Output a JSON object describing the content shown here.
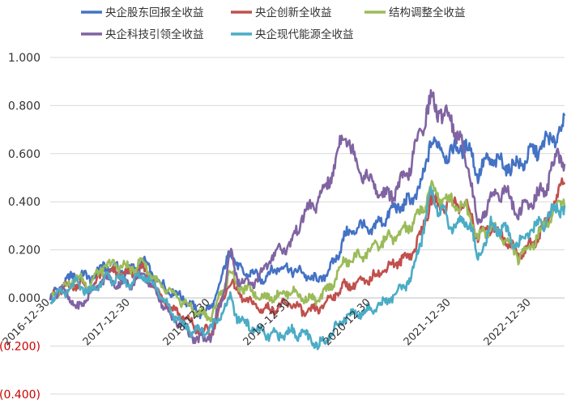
{
  "chart_data": {
    "type": "line",
    "grid": true,
    "legend_position": "top",
    "ylim": [
      -0.4,
      1.0
    ],
    "y_ticks": [
      {
        "value": 1.0,
        "label": "1.000"
      },
      {
        "value": 0.8,
        "label": "0.800"
      },
      {
        "value": 0.6,
        "label": "0.600"
      },
      {
        "value": 0.4,
        "label": "0.400"
      },
      {
        "value": 0.2,
        "label": "0.200"
      },
      {
        "value": 0.0,
        "label": "0.000"
      },
      {
        "value": -0.2,
        "label": "(0.200)"
      },
      {
        "value": -0.4,
        "label": "(0.400)"
      }
    ],
    "x_ticks": [
      "2016-12-30",
      "2017-12-30",
      "2018-12-30",
      "2019-12-30",
      "2020-12-30",
      "2021-12-30",
      "2022-12-30"
    ],
    "x_range": [
      "2016-12-30",
      "2023-05-31"
    ],
    "series": [
      {
        "name": "央企股东回报全收益",
        "color": "#4472C4",
        "points": [
          [
            "2016-12-30",
            0.0
          ],
          [
            "2017-02-28",
            0.06
          ],
          [
            "2017-04-30",
            0.1
          ],
          [
            "2017-06-30",
            0.08
          ],
          [
            "2017-08-31",
            0.13
          ],
          [
            "2017-10-31",
            0.12
          ],
          [
            "2017-12-30",
            0.11
          ],
          [
            "2018-02-28",
            0.15
          ],
          [
            "2018-04-30",
            0.07
          ],
          [
            "2018-06-30",
            0.03
          ],
          [
            "2018-08-31",
            0.0
          ],
          [
            "2018-10-31",
            -0.06
          ],
          [
            "2018-12-30",
            -0.05
          ],
          [
            "2019-02-28",
            0.1
          ],
          [
            "2019-03-31",
            0.22
          ],
          [
            "2019-04-30",
            0.12
          ],
          [
            "2019-06-30",
            0.1
          ],
          [
            "2019-08-31",
            0.08
          ],
          [
            "2019-10-31",
            0.13
          ],
          [
            "2019-12-30",
            0.12
          ],
          [
            "2020-02-28",
            0.1
          ],
          [
            "2020-04-30",
            0.07
          ],
          [
            "2020-06-30",
            0.12
          ],
          [
            "2020-08-31",
            0.25
          ],
          [
            "2020-10-31",
            0.3
          ],
          [
            "2020-12-30",
            0.28
          ],
          [
            "2021-02-28",
            0.33
          ],
          [
            "2021-04-30",
            0.38
          ],
          [
            "2021-06-30",
            0.4
          ],
          [
            "2021-08-31",
            0.5
          ],
          [
            "2021-09-30",
            0.68
          ],
          [
            "2021-10-31",
            0.62
          ],
          [
            "2021-12-30",
            0.6
          ],
          [
            "2022-02-28",
            0.64
          ],
          [
            "2022-03-31",
            0.6
          ],
          [
            "2022-04-30",
            0.52
          ],
          [
            "2022-06-30",
            0.58
          ],
          [
            "2022-08-31",
            0.55
          ],
          [
            "2022-10-31",
            0.55
          ],
          [
            "2022-12-30",
            0.6
          ],
          [
            "2023-02-28",
            0.64
          ],
          [
            "2023-04-30",
            0.68
          ],
          [
            "2023-05-31",
            0.72
          ]
        ]
      },
      {
        "name": "央企创新全收益",
        "color": "#C0504D",
        "points": [
          [
            "2016-12-30",
            0.0
          ],
          [
            "2017-02-28",
            0.04
          ],
          [
            "2017-04-30",
            0.06
          ],
          [
            "2017-06-30",
            0.04
          ],
          [
            "2017-08-31",
            0.1
          ],
          [
            "2017-10-31",
            0.1
          ],
          [
            "2017-12-30",
            0.1
          ],
          [
            "2018-02-28",
            0.12
          ],
          [
            "2018-04-30",
            0.03
          ],
          [
            "2018-06-30",
            -0.04
          ],
          [
            "2018-08-31",
            -0.08
          ],
          [
            "2018-10-31",
            -0.13
          ],
          [
            "2018-12-30",
            -0.15
          ],
          [
            "2019-02-28",
            0.0
          ],
          [
            "2019-03-31",
            0.08
          ],
          [
            "2019-04-30",
            0.02
          ],
          [
            "2019-06-30",
            -0.02
          ],
          [
            "2019-08-31",
            -0.05
          ],
          [
            "2019-10-31",
            -0.04
          ],
          [
            "2019-12-30",
            -0.02
          ],
          [
            "2020-02-28",
            -0.06
          ],
          [
            "2020-04-30",
            -0.05
          ],
          [
            "2020-06-30",
            0.0
          ],
          [
            "2020-08-31",
            0.05
          ],
          [
            "2020-10-31",
            0.06
          ],
          [
            "2020-12-30",
            0.08
          ],
          [
            "2021-02-28",
            0.12
          ],
          [
            "2021-04-30",
            0.15
          ],
          [
            "2021-06-30",
            0.18
          ],
          [
            "2021-08-31",
            0.3
          ],
          [
            "2021-09-30",
            0.42
          ],
          [
            "2021-10-31",
            0.38
          ],
          [
            "2021-12-30",
            0.4
          ],
          [
            "2022-02-28",
            0.38
          ],
          [
            "2022-03-31",
            0.35
          ],
          [
            "2022-04-30",
            0.25
          ],
          [
            "2022-06-30",
            0.3
          ],
          [
            "2022-08-31",
            0.25
          ],
          [
            "2022-10-31",
            0.18
          ],
          [
            "2022-12-30",
            0.22
          ],
          [
            "2023-02-28",
            0.3
          ],
          [
            "2023-04-30",
            0.42
          ],
          [
            "2023-05-31",
            0.5
          ]
        ]
      },
      {
        "name": "结构调整全收益",
        "color": "#9BBB59",
        "points": [
          [
            "2016-12-30",
            0.0
          ],
          [
            "2017-02-28",
            0.05
          ],
          [
            "2017-04-30",
            0.08
          ],
          [
            "2017-06-30",
            0.06
          ],
          [
            "2017-08-31",
            0.13
          ],
          [
            "2017-10-31",
            0.14
          ],
          [
            "2017-12-30",
            0.12
          ],
          [
            "2018-02-28",
            0.15
          ],
          [
            "2018-04-30",
            0.06
          ],
          [
            "2018-06-30",
            0.02
          ],
          [
            "2018-08-31",
            -0.02
          ],
          [
            "2018-10-31",
            -0.06
          ],
          [
            "2018-12-30",
            -0.08
          ],
          [
            "2019-02-28",
            0.04
          ],
          [
            "2019-03-31",
            0.12
          ],
          [
            "2019-04-30",
            0.05
          ],
          [
            "2019-06-30",
            0.03
          ],
          [
            "2019-08-31",
            0.0
          ],
          [
            "2019-10-31",
            0.01
          ],
          [
            "2019-12-30",
            0.03
          ],
          [
            "2020-02-28",
            0.0
          ],
          [
            "2020-04-30",
            -0.01
          ],
          [
            "2020-06-30",
            0.05
          ],
          [
            "2020-08-31",
            0.15
          ],
          [
            "2020-10-31",
            0.17
          ],
          [
            "2020-12-30",
            0.2
          ],
          [
            "2021-02-28",
            0.24
          ],
          [
            "2021-04-30",
            0.26
          ],
          [
            "2021-06-30",
            0.3
          ],
          [
            "2021-08-31",
            0.38
          ],
          [
            "2021-09-30",
            0.47
          ],
          [
            "2021-10-31",
            0.42
          ],
          [
            "2021-12-30",
            0.4
          ],
          [
            "2022-02-28",
            0.38
          ],
          [
            "2022-03-31",
            0.34
          ],
          [
            "2022-04-30",
            0.25
          ],
          [
            "2022-06-30",
            0.3
          ],
          [
            "2022-08-31",
            0.25
          ],
          [
            "2022-10-31",
            0.17
          ],
          [
            "2022-12-30",
            0.22
          ],
          [
            "2023-02-28",
            0.3
          ],
          [
            "2023-04-30",
            0.38
          ],
          [
            "2023-05-31",
            0.42
          ]
        ]
      },
      {
        "name": "央企科技引领全收益",
        "color": "#8064A2",
        "points": [
          [
            "2016-12-30",
            0.0
          ],
          [
            "2017-02-28",
            0.04
          ],
          [
            "2017-04-30",
            -0.05
          ],
          [
            "2017-06-30",
            0.02
          ],
          [
            "2017-08-31",
            0.08
          ],
          [
            "2017-10-31",
            0.06
          ],
          [
            "2017-12-30",
            0.06
          ],
          [
            "2018-02-28",
            0.1
          ],
          [
            "2018-04-30",
            0.02
          ],
          [
            "2018-06-30",
            -0.08
          ],
          [
            "2018-08-31",
            -0.12
          ],
          [
            "2018-10-31",
            -0.18
          ],
          [
            "2018-12-30",
            -0.16
          ],
          [
            "2019-02-28",
            0.02
          ],
          [
            "2019-03-31",
            0.2
          ],
          [
            "2019-04-30",
            0.08
          ],
          [
            "2019-06-30",
            0.05
          ],
          [
            "2019-08-31",
            0.12
          ],
          [
            "2019-10-31",
            0.2
          ],
          [
            "2019-12-30",
            0.22
          ],
          [
            "2020-02-28",
            0.35
          ],
          [
            "2020-04-30",
            0.4
          ],
          [
            "2020-06-30",
            0.5
          ],
          [
            "2020-08-31",
            0.7
          ],
          [
            "2020-10-31",
            0.55
          ],
          [
            "2020-12-30",
            0.48
          ],
          [
            "2021-02-28",
            0.42
          ],
          [
            "2021-04-30",
            0.45
          ],
          [
            "2021-06-30",
            0.55
          ],
          [
            "2021-08-31",
            0.75
          ],
          [
            "2021-09-30",
            0.82
          ],
          [
            "2021-10-31",
            0.78
          ],
          [
            "2021-12-30",
            0.75
          ],
          [
            "2022-02-28",
            0.6
          ],
          [
            "2022-03-31",
            0.5
          ],
          [
            "2022-04-30",
            0.3
          ],
          [
            "2022-06-30",
            0.42
          ],
          [
            "2022-08-31",
            0.45
          ],
          [
            "2022-10-31",
            0.35
          ],
          [
            "2022-12-30",
            0.4
          ],
          [
            "2023-02-28",
            0.45
          ],
          [
            "2023-04-30",
            0.6
          ],
          [
            "2023-05-31",
            0.55
          ]
        ]
      },
      {
        "name": "央企现代能源全收益",
        "color": "#4BACC6",
        "points": [
          [
            "2016-12-30",
            0.0
          ],
          [
            "2017-02-28",
            0.02
          ],
          [
            "2017-04-30",
            0.06
          ],
          [
            "2017-06-30",
            0.02
          ],
          [
            "2017-08-31",
            0.08
          ],
          [
            "2017-10-31",
            0.08
          ],
          [
            "2017-12-30",
            0.06
          ],
          [
            "2018-02-28",
            0.1
          ],
          [
            "2018-04-30",
            0.04
          ],
          [
            "2018-06-30",
            -0.05
          ],
          [
            "2018-08-31",
            -0.12
          ],
          [
            "2018-10-31",
            -0.14
          ],
          [
            "2018-12-30",
            -0.13
          ],
          [
            "2019-02-28",
            -0.05
          ],
          [
            "2019-03-31",
            0.0
          ],
          [
            "2019-04-30",
            -0.08
          ],
          [
            "2019-06-30",
            -0.12
          ],
          [
            "2019-08-31",
            -0.15
          ],
          [
            "2019-10-31",
            -0.16
          ],
          [
            "2019-12-30",
            -0.14
          ],
          [
            "2020-02-28",
            -0.15
          ],
          [
            "2020-04-30",
            -0.2
          ],
          [
            "2020-06-30",
            -0.15
          ],
          [
            "2020-08-31",
            -0.08
          ],
          [
            "2020-10-31",
            -0.06
          ],
          [
            "2020-12-30",
            -0.05
          ],
          [
            "2021-02-28",
            -0.02
          ],
          [
            "2021-04-30",
            0.02
          ],
          [
            "2021-06-30",
            0.08
          ],
          [
            "2021-08-31",
            0.3
          ],
          [
            "2021-09-30",
            0.45
          ],
          [
            "2021-10-31",
            0.38
          ],
          [
            "2021-12-30",
            0.3
          ],
          [
            "2022-02-28",
            0.32
          ],
          [
            "2022-03-31",
            0.3
          ],
          [
            "2022-04-30",
            0.16
          ],
          [
            "2022-06-30",
            0.3
          ],
          [
            "2022-08-31",
            0.28
          ],
          [
            "2022-10-31",
            0.22
          ],
          [
            "2022-12-30",
            0.28
          ],
          [
            "2023-02-28",
            0.32
          ],
          [
            "2023-04-30",
            0.38
          ],
          [
            "2023-05-31",
            0.36
          ]
        ]
      }
    ]
  }
}
